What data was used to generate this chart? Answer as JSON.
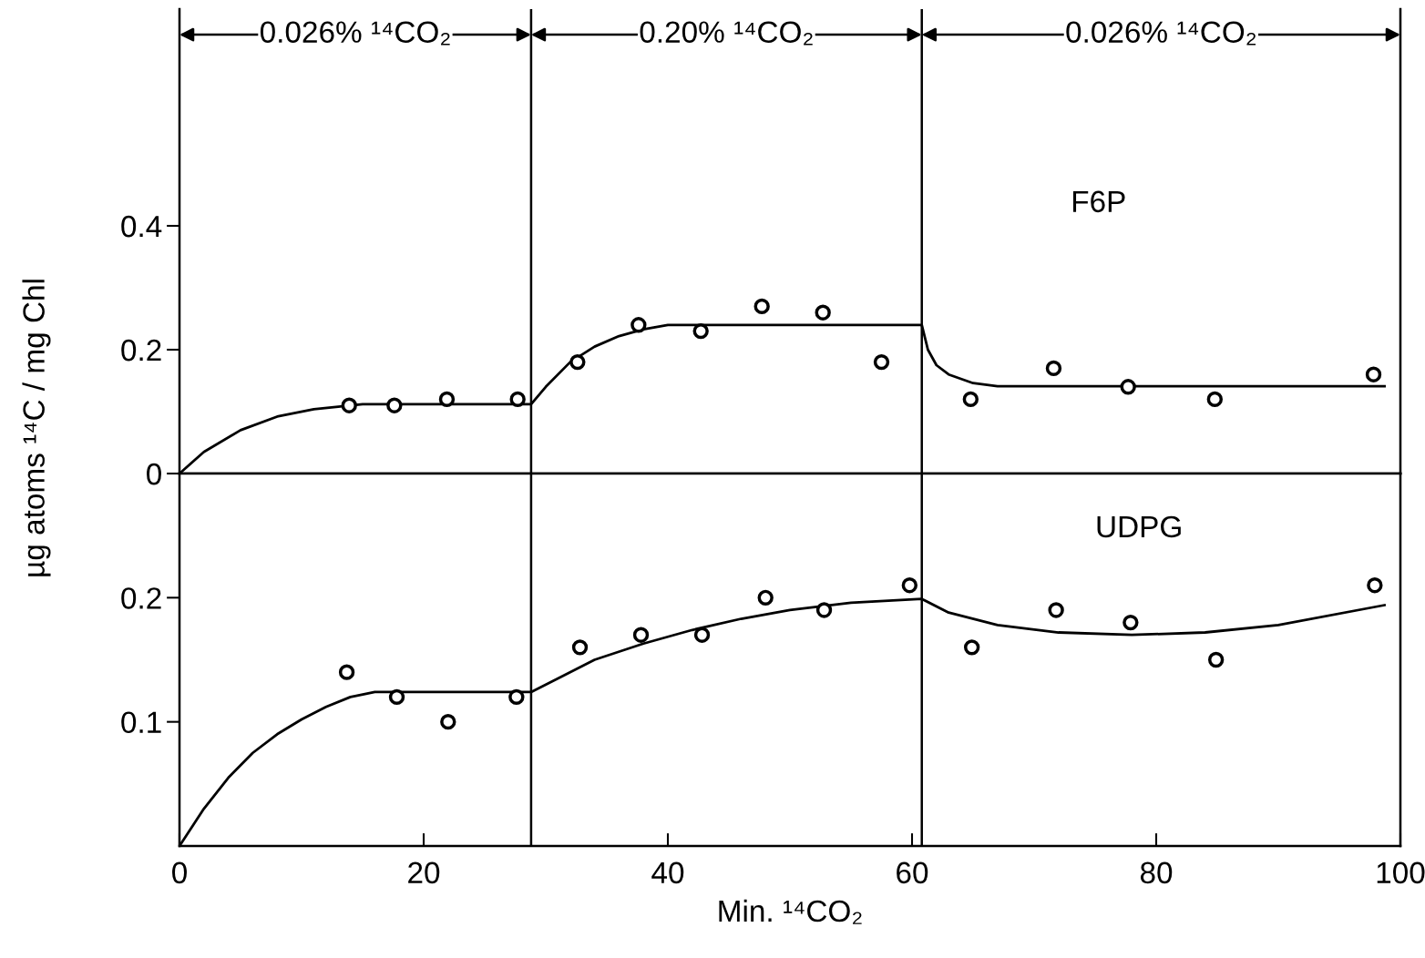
{
  "chart_data": [
    {
      "type": "scatter",
      "title": "F6P",
      "ylabel": "µg atoms ¹⁴C / mg Chl",
      "xlim": [
        0,
        100
      ],
      "ylim": [
        0,
        0.75
      ],
      "yticks": [
        0,
        0.2,
        0.4
      ],
      "tick_labels": "y",
      "grid": false,
      "legend": false,
      "series": [
        {
          "marker": "circle",
          "color": "#000000",
          "x": [
            13.9,
            17.6,
            21.9,
            27.7,
            32.6,
            37.6,
            42.7,
            47.7,
            52.7,
            57.5,
            64.8,
            71.6,
            77.7,
            84.8,
            97.8
          ],
          "values": [
            0.11,
            0.11,
            0.12,
            0.12,
            0.18,
            0.24,
            0.23,
            0.27,
            0.26,
            0.18,
            0.12,
            0.17,
            0.14,
            0.12,
            0.16
          ]
        },
        {
          "type": "line",
          "marker": "none",
          "line_style": "solid",
          "color": "#000000",
          "x": [
            0,
            2,
            5,
            8,
            11,
            15,
            28.8,
            30,
            32,
            34,
            36,
            38,
            40,
            60.8,
            61.3,
            62,
            63,
            65,
            67,
            98.7
          ],
          "values": [
            0,
            0.035,
            0.07,
            0.092,
            0.104,
            0.112,
            0.112,
            0.14,
            0.18,
            0.205,
            0.222,
            0.233,
            0.24,
            0.24,
            0.2,
            0.175,
            0.16,
            0.146,
            0.141,
            0.141
          ]
        }
      ],
      "ref_lines": [
        {
          "axis": "x",
          "value": 28.8,
          "color": "#000000"
        },
        {
          "axis": "x",
          "value": 60.8,
          "color": "#000000"
        }
      ],
      "annotations": [
        "0.026% ¹⁴CO₂",
        "0.20% ¹⁴CO₂",
        "0.026% ¹⁴CO₂"
      ]
    },
    {
      "type": "scatter",
      "title": "UDPG",
      "xlabel": "Min. ¹⁴CO₂",
      "xlim": [
        0,
        100
      ],
      "xticks": [
        0,
        20,
        40,
        60,
        80,
        100
      ],
      "ylim": [
        0,
        0.3
      ],
      "yticks": [
        0.1,
        0.2
      ],
      "grid": false,
      "legend": false,
      "series": [
        {
          "marker": "circle",
          "color": "#000000",
          "x": [
            13.7,
            17.8,
            22.0,
            27.6,
            32.8,
            37.8,
            42.8,
            48.0,
            52.8,
            59.8,
            64.9,
            71.8,
            77.9,
            84.9,
            97.9
          ],
          "values": [
            0.14,
            0.12,
            0.1,
            0.12,
            0.16,
            0.17,
            0.17,
            0.2,
            0.19,
            0.21,
            0.16,
            0.19,
            0.18,
            0.15,
            0.21
          ]
        },
        {
          "type": "line",
          "marker": "none",
          "line_style": "solid",
          "color": "#000000",
          "x": [
            0,
            2,
            4,
            6,
            8,
            10,
            12,
            14,
            16,
            28.8,
            31,
            34,
            38,
            42,
            46,
            50,
            55,
            60.8,
            63,
            67,
            72,
            78,
            84,
            90,
            98.7
          ],
          "values": [
            0,
            0.03,
            0.055,
            0.075,
            0.09,
            0.102,
            0.112,
            0.12,
            0.124,
            0.124,
            0.135,
            0.15,
            0.163,
            0.174,
            0.183,
            0.19,
            0.196,
            0.199,
            0.188,
            0.178,
            0.172,
            0.17,
            0.172,
            0.178,
            0.194
          ]
        }
      ],
      "ref_lines": [
        {
          "axis": "x",
          "value": 28.8,
          "color": "#000000"
        },
        {
          "axis": "x",
          "value": 60.8,
          "color": "#000000"
        }
      ]
    }
  ]
}
